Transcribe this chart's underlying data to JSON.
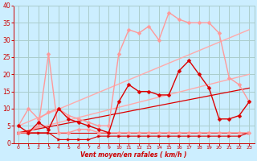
{
  "background_color": "#cceeff",
  "grid_color": "#aacccc",
  "title": "Vent moyen/en rafales ( km/h )",
  "xlim": [
    -0.5,
    23.5
  ],
  "ylim": [
    0,
    40
  ],
  "yticks": [
    0,
    5,
    10,
    15,
    20,
    25,
    30,
    35,
    40
  ],
  "xticks": [
    0,
    1,
    2,
    3,
    4,
    5,
    6,
    7,
    8,
    9,
    10,
    11,
    12,
    13,
    14,
    15,
    16,
    17,
    18,
    19,
    20,
    21,
    22,
    23
  ],
  "series": [
    {
      "x": [
        0,
        1,
        2,
        3,
        4,
        5,
        6,
        7,
        8,
        9,
        10,
        11,
        12,
        13,
        14,
        15,
        16,
        17,
        18,
        19,
        20,
        21,
        22,
        23
      ],
      "y": [
        3,
        3,
        3,
        3,
        1,
        1,
        1,
        1,
        2,
        2,
        2,
        2,
        2,
        2,
        2,
        2,
        2,
        2,
        2,
        2,
        2,
        2,
        2,
        3
      ],
      "color": "#dd0000",
      "linewidth": 0.8,
      "marker": ">",
      "markersize": 2.5,
      "zorder": 3
    },
    {
      "x": [
        0,
        23
      ],
      "y": [
        5,
        33
      ],
      "color": "#ffaaaa",
      "linewidth": 1.0,
      "marker": null,
      "markersize": 0,
      "zorder": 2
    },
    {
      "x": [
        0,
        23
      ],
      "y": [
        3,
        20
      ],
      "color": "#ffaaaa",
      "linewidth": 1.0,
      "marker": null,
      "markersize": 0,
      "zorder": 2
    },
    {
      "x": [
        0,
        23
      ],
      "y": [
        3,
        16
      ],
      "color": "#dd0000",
      "linewidth": 0.9,
      "marker": null,
      "markersize": 0,
      "zorder": 2
    },
    {
      "x": [
        0,
        23
      ],
      "y": [
        3,
        3
      ],
      "color": "#dd0000",
      "linewidth": 0.8,
      "marker": null,
      "markersize": 0,
      "zorder": 2
    },
    {
      "x": [
        0,
        1,
        2,
        3,
        4,
        5,
        6,
        7,
        8,
        9,
        10,
        11,
        12,
        13,
        14,
        15,
        16,
        17,
        18,
        19,
        20,
        21,
        22,
        23
      ],
      "y": [
        5,
        10,
        7,
        9,
        10,
        8,
        7,
        6,
        5,
        5,
        26,
        33,
        32,
        34,
        30,
        38,
        36,
        35,
        35,
        35,
        32,
        19,
        17,
        12
      ],
      "color": "#ff9999",
      "linewidth": 1.0,
      "marker": "D",
      "markersize": 2.5,
      "zorder": 3
    },
    {
      "x": [
        0,
        1,
        2,
        3,
        4,
        5,
        6,
        7,
        8,
        9,
        10,
        11,
        12,
        13,
        14,
        15,
        16,
        17,
        18,
        19,
        20,
        21,
        22,
        23
      ],
      "y": [
        3,
        3,
        5,
        26,
        3,
        3,
        4,
        4,
        3,
        3,
        3,
        3,
        3,
        3,
        3,
        3,
        3,
        3,
        3,
        3,
        3,
        3,
        3,
        3
      ],
      "color": "#ff9999",
      "linewidth": 1.0,
      "marker": "D",
      "markersize": 2.5,
      "zorder": 3
    },
    {
      "x": [
        0,
        1,
        2,
        3,
        4,
        5,
        6,
        7,
        8,
        9,
        10,
        11,
        12,
        13,
        14,
        15,
        16,
        17,
        18,
        19,
        20,
        21,
        22,
        23
      ],
      "y": [
        5,
        3,
        6,
        4,
        10,
        7,
        6,
        5,
        4,
        3,
        12,
        17,
        15,
        15,
        14,
        14,
        21,
        24,
        20,
        16,
        7,
        7,
        8,
        12
      ],
      "color": "#dd0000",
      "linewidth": 1.0,
      "marker": "D",
      "markersize": 2.5,
      "zorder": 4
    }
  ]
}
